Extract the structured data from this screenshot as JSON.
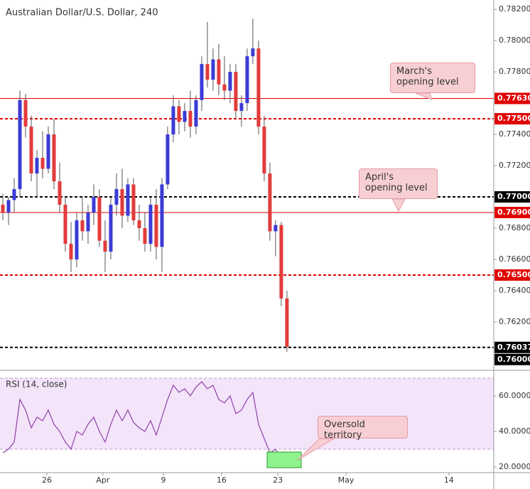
{
  "chart_data": [
    {
      "type": "candlestick",
      "title": "Australian Dollar/U.S. Dollar, 240",
      "up_color": "#3b3bd6",
      "down_color": "#e23b3b",
      "open": [
        0.7695,
        0.769,
        0.7698,
        0.7705,
        0.7762,
        0.7745,
        0.7715,
        0.7725,
        0.7718,
        0.774,
        0.771,
        0.7695,
        0.767,
        0.766,
        0.7685,
        0.7678,
        0.769,
        0.77,
        0.7672,
        0.7665,
        0.7695,
        0.7705,
        0.7688,
        0.7708,
        0.7685,
        0.768,
        0.767,
        0.7695,
        0.7668,
        0.7708,
        0.774,
        0.7758,
        0.7748,
        0.7755,
        0.7745,
        0.7762,
        0.7785,
        0.7775,
        0.7788,
        0.7772,
        0.7768,
        0.778,
        0.7755,
        0.776,
        0.779,
        0.7795,
        0.7745,
        0.7715,
        0.7678,
        0.7682,
        0.7635
      ],
      "high": [
        0.7702,
        0.77,
        0.7712,
        0.7768,
        0.7766,
        0.7752,
        0.773,
        0.7742,
        0.7745,
        0.775,
        0.7722,
        0.77,
        0.7684,
        0.769,
        0.77,
        0.7695,
        0.7708,
        0.7705,
        0.7685,
        0.77,
        0.7715,
        0.7718,
        0.7712,
        0.7712,
        0.7695,
        0.769,
        0.77,
        0.7705,
        0.7712,
        0.7745,
        0.7765,
        0.7762,
        0.776,
        0.7768,
        0.7765,
        0.779,
        0.7812,
        0.7795,
        0.7798,
        0.779,
        0.7785,
        0.7785,
        0.7765,
        0.7795,
        0.7814,
        0.78,
        0.7752,
        0.7722,
        0.7685,
        0.7684,
        0.764
      ],
      "low": [
        0.7685,
        0.7682,
        0.769,
        0.77,
        0.7738,
        0.771,
        0.77,
        0.7712,
        0.7715,
        0.7705,
        0.769,
        0.7665,
        0.7652,
        0.7655,
        0.7672,
        0.767,
        0.7682,
        0.7668,
        0.7652,
        0.766,
        0.7688,
        0.768,
        0.7684,
        0.7682,
        0.7672,
        0.7665,
        0.7665,
        0.766,
        0.7652,
        0.7705,
        0.7735,
        0.774,
        0.7742,
        0.7738,
        0.774,
        0.7755,
        0.777,
        0.7768,
        0.7765,
        0.7762,
        0.776,
        0.775,
        0.7745,
        0.7755,
        0.7785,
        0.774,
        0.771,
        0.7672,
        0.7662,
        0.763,
        0.7601
      ],
      "close": [
        0.769,
        0.7698,
        0.7705,
        0.7762,
        0.7745,
        0.7715,
        0.7725,
        0.7718,
        0.774,
        0.771,
        0.7695,
        0.767,
        0.766,
        0.7685,
        0.7678,
        0.769,
        0.77,
        0.7672,
        0.7665,
        0.7695,
        0.7705,
        0.7688,
        0.7708,
        0.7685,
        0.768,
        0.767,
        0.7695,
        0.7668,
        0.7708,
        0.774,
        0.7758,
        0.7748,
        0.7755,
        0.7745,
        0.7762,
        0.7785,
        0.7775,
        0.7788,
        0.7772,
        0.7768,
        0.778,
        0.7755,
        0.776,
        0.779,
        0.7795,
        0.7745,
        0.7715,
        0.7678,
        0.7682,
        0.7635,
        0.7604
      ],
      "ylim": [
        0.75895,
        0.7826
      ],
      "yticks": [
        {
          "value": 0.762,
          "label": "0.76200"
        },
        {
          "value": 0.764,
          "label": "0.76400"
        },
        {
          "value": 0.766,
          "label": "0.76600"
        },
        {
          "value": 0.768,
          "label": "0.76800"
        },
        {
          "value": 0.772,
          "label": "0.77200"
        },
        {
          "value": 0.774,
          "label": "0.77400"
        },
        {
          "value": 0.778,
          "label": "0.77800"
        },
        {
          "value": 0.78,
          "label": "0.78000"
        },
        {
          "value": 0.782,
          "label": "0.78200"
        }
      ],
      "xlim": [
        -0.5,
        86.4
      ],
      "xticks": [
        {
          "value": 7.75,
          "label": "26"
        },
        {
          "value": 17.6,
          "label": "Apr"
        },
        {
          "value": 28.25,
          "label": "9"
        },
        {
          "value": 38.5,
          "label": "16"
        },
        {
          "value": 48.4,
          "label": "23"
        },
        {
          "value": 60.4,
          "label": "May"
        },
        {
          "value": 78.5,
          "label": "14"
        }
      ],
      "levels": [
        {
          "value": 0.7763,
          "label": "0.77630",
          "color": "#e00000",
          "style": "solid"
        },
        {
          "value": 0.775,
          "label": "0.77500",
          "color": "#e00000",
          "style": "dashed"
        },
        {
          "value": 0.77,
          "label": "0.77000",
          "color": "#000000",
          "style": "dashed"
        },
        {
          "value": 0.769,
          "label": "0.76900",
          "color": "#e00000",
          "style": "solid"
        },
        {
          "value": 0.765,
          "label": "0.76500",
          "color": "#e00000",
          "style": "dashed"
        },
        {
          "value": 0.76037,
          "label": "0.76037",
          "color": "#000000",
          "style": "dashed"
        },
        {
          "value": 0.76,
          "label": "0.76000",
          "color": "#000000",
          "style": "none"
        }
      ],
      "annotations": [
        "March's opening level",
        "April's opening level"
      ]
    },
    {
      "type": "line",
      "title": "RSI (14, close)",
      "color": "#8e3fa8",
      "values": [
        28,
        30,
        34,
        58,
        52,
        42,
        48,
        46,
        52,
        44,
        40,
        34,
        30,
        40,
        38,
        44,
        48,
        40,
        34,
        44,
        52,
        46,
        52,
        45,
        42,
        40,
        46,
        38,
        48,
        58,
        66,
        62,
        64,
        60,
        65,
        68,
        64,
        66,
        58,
        56,
        60,
        50,
        52,
        58,
        62,
        44,
        36,
        28,
        30,
        24,
        21
      ],
      "ylim": [
        16.8,
        72
      ],
      "yticks": [
        {
          "value": 20,
          "label": "20.0000"
        },
        {
          "value": 40,
          "label": "40.0000"
        },
        {
          "value": 60,
          "label": "60.0000"
        }
      ],
      "band": [
        30,
        70
      ],
      "annotation": "Oversold territory"
    }
  ]
}
